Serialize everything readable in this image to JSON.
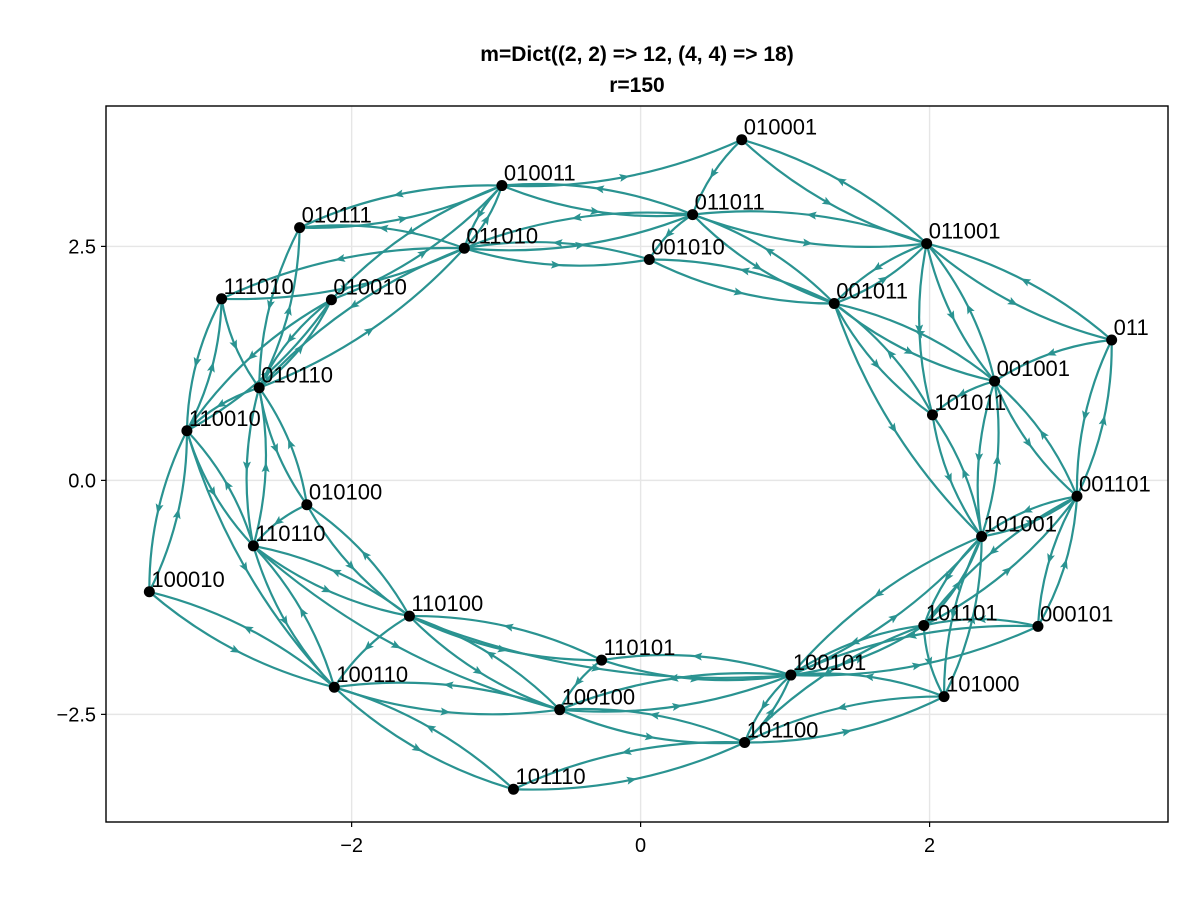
{
  "title": {
    "line1": "m=Dict((2, 2) => 12, (4, 4) => 18)",
    "line2": "r=150"
  },
  "axes": {
    "x_ticks": [
      {
        "value": -2,
        "label": "−2"
      },
      {
        "value": 0,
        "label": "0"
      },
      {
        "value": 2,
        "label": "2"
      }
    ],
    "y_ticks": [
      {
        "value": 2.5,
        "label": "2.5"
      },
      {
        "value": 0,
        "label": "0.0"
      },
      {
        "value": -2.5,
        "label": "−2.5"
      }
    ],
    "xlim": [
      -3.7,
      3.65
    ],
    "ylim": [
      -3.65,
      4.0
    ],
    "grid": true
  },
  "colors": {
    "edge": "#2a9391",
    "node": "#000000"
  },
  "nodes": [
    {
      "id": "010001",
      "x": 0.7,
      "y": 3.64
    },
    {
      "id": "010011",
      "x": -0.96,
      "y": 3.15
    },
    {
      "id": "011011",
      "x": 0.36,
      "y": 2.84
    },
    {
      "id": "010111",
      "x": -2.36,
      "y": 2.7
    },
    {
      "id": "011001",
      "x": 1.98,
      "y": 2.53
    },
    {
      "id": "011010",
      "x": -1.22,
      "y": 2.48
    },
    {
      "id": "001010",
      "x": 0.06,
      "y": 2.36
    },
    {
      "id": "111010",
      "x": -2.9,
      "y": 1.94
    },
    {
      "id": "010010",
      "x": -2.14,
      "y": 1.93
    },
    {
      "id": "001011",
      "x": 1.34,
      "y": 1.89
    },
    {
      "id": "011",
      "x": 3.26,
      "y": 1.5
    },
    {
      "id": "001001",
      "x": 2.45,
      "y": 1.06
    },
    {
      "id": "010110",
      "x": -2.64,
      "y": 0.99
    },
    {
      "id": "101011",
      "x": 2.02,
      "y": 0.7
    },
    {
      "id": "110010",
      "x": -3.14,
      "y": 0.53
    },
    {
      "id": "001101",
      "x": 3.02,
      "y": -0.17
    },
    {
      "id": "010100",
      "x": -2.31,
      "y": -0.26
    },
    {
      "id": "101001",
      "x": 2.36,
      "y": -0.6
    },
    {
      "id": "110110",
      "x": -2.68,
      "y": -0.7
    },
    {
      "id": "100010",
      "x": -3.4,
      "y": -1.19
    },
    {
      "id": "110100",
      "x": -1.6,
      "y": -1.45
    },
    {
      "id": "101101",
      "x": 1.96,
      "y": -1.55
    },
    {
      "id": "000101",
      "x": 2.75,
      "y": -1.56
    },
    {
      "id": "110101",
      "x": -0.27,
      "y": -1.92
    },
    {
      "id": "100101",
      "x": 1.04,
      "y": -2.08
    },
    {
      "id": "100110",
      "x": -2.12,
      "y": -2.21
    },
    {
      "id": "101000",
      "x": 2.1,
      "y": -2.31
    },
    {
      "id": "100100",
      "x": -0.56,
      "y": -2.45
    },
    {
      "id": "101100",
      "x": 0.72,
      "y": -2.8
    },
    {
      "id": "101110",
      "x": -0.88,
      "y": -3.3
    }
  ],
  "edges": [
    [
      "010011",
      "010001"
    ],
    [
      "010001",
      "011011"
    ],
    [
      "010001",
      "011001"
    ],
    [
      "011001",
      "010001"
    ],
    [
      "011011",
      "010011"
    ],
    [
      "010011",
      "011011"
    ],
    [
      "010011",
      "010111"
    ],
    [
      "010111",
      "010011"
    ],
    [
      "010011",
      "011010"
    ],
    [
      "011010",
      "010011"
    ],
    [
      "010011",
      "010010"
    ],
    [
      "010010",
      "010011"
    ],
    [
      "011011",
      "011001"
    ],
    [
      "011001",
      "011011"
    ],
    [
      "011011",
      "011010"
    ],
    [
      "011010",
      "011011"
    ],
    [
      "011011",
      "001011"
    ],
    [
      "001011",
      "011011"
    ],
    [
      "011011",
      "001010"
    ],
    [
      "011001",
      "001011"
    ],
    [
      "001011",
      "011001"
    ],
    [
      "011001",
      "011"
    ],
    [
      "011",
      "011001"
    ],
    [
      "011001",
      "001001"
    ],
    [
      "001001",
      "011001"
    ],
    [
      "011001",
      "101011"
    ],
    [
      "011010",
      "001010"
    ],
    [
      "001010",
      "011010"
    ],
    [
      "011010",
      "111010"
    ],
    [
      "111010",
      "011010"
    ],
    [
      "011010",
      "010110"
    ],
    [
      "010110",
      "011010"
    ],
    [
      "011010",
      "010111"
    ],
    [
      "001010",
      "001011"
    ],
    [
      "001011",
      "001010"
    ],
    [
      "010111",
      "010110"
    ],
    [
      "010110",
      "010111"
    ],
    [
      "111010",
      "110010"
    ],
    [
      "110010",
      "111010"
    ],
    [
      "111010",
      "010110"
    ],
    [
      "010010",
      "010110"
    ],
    [
      "010110",
      "010010"
    ],
    [
      "010010",
      "110010"
    ],
    [
      "110010",
      "010010"
    ],
    [
      "001011",
      "001001"
    ],
    [
      "001001",
      "001011"
    ],
    [
      "001011",
      "101011"
    ],
    [
      "101011",
      "001011"
    ],
    [
      "001011",
      "101001"
    ],
    [
      "011",
      "001101"
    ],
    [
      "001101",
      "011"
    ],
    [
      "011",
      "001001"
    ],
    [
      "001001",
      "001101"
    ],
    [
      "001101",
      "001001"
    ],
    [
      "001001",
      "101001"
    ],
    [
      "101001",
      "001001"
    ],
    [
      "001001",
      "101011"
    ],
    [
      "101011",
      "101001"
    ],
    [
      "101001",
      "101011"
    ],
    [
      "010110",
      "010100"
    ],
    [
      "010100",
      "010110"
    ],
    [
      "010110",
      "110110"
    ],
    [
      "110110",
      "010110"
    ],
    [
      "010110",
      "110010"
    ],
    [
      "110010",
      "110110"
    ],
    [
      "110110",
      "110010"
    ],
    [
      "110010",
      "100010"
    ],
    [
      "100010",
      "110010"
    ],
    [
      "110010",
      "100110"
    ],
    [
      "001101",
      "101001"
    ],
    [
      "101001",
      "001101"
    ],
    [
      "001101",
      "000101"
    ],
    [
      "000101",
      "001101"
    ],
    [
      "001101",
      "101101"
    ],
    [
      "101101",
      "001101"
    ],
    [
      "010100",
      "110100"
    ],
    [
      "110100",
      "010100"
    ],
    [
      "010100",
      "110110"
    ],
    [
      "101001",
      "101101"
    ],
    [
      "101101",
      "101001"
    ],
    [
      "101001",
      "100101"
    ],
    [
      "100101",
      "101001"
    ],
    [
      "101001",
      "101000"
    ],
    [
      "101000",
      "101001"
    ],
    [
      "110110",
      "110100"
    ],
    [
      "110100",
      "110110"
    ],
    [
      "110110",
      "100110"
    ],
    [
      "100110",
      "110110"
    ],
    [
      "110110",
      "100100"
    ],
    [
      "100010",
      "100110"
    ],
    [
      "100110",
      "100010"
    ],
    [
      "110100",
      "110101"
    ],
    [
      "110101",
      "110100"
    ],
    [
      "110100",
      "100100"
    ],
    [
      "100100",
      "110100"
    ],
    [
      "110100",
      "100101"
    ],
    [
      "110100",
      "100110"
    ],
    [
      "101101",
      "100101"
    ],
    [
      "100101",
      "101101"
    ],
    [
      "101101",
      "101000"
    ],
    [
      "101101",
      "101100"
    ],
    [
      "000101",
      "100101"
    ],
    [
      "100101",
      "000101"
    ],
    [
      "000101",
      "101101"
    ],
    [
      "110101",
      "100101"
    ],
    [
      "100101",
      "110101"
    ],
    [
      "110101",
      "100100"
    ],
    [
      "100101",
      "100100"
    ],
    [
      "100100",
      "100101"
    ],
    [
      "100101",
      "101100"
    ],
    [
      "101100",
      "100101"
    ],
    [
      "100110",
      "100100"
    ],
    [
      "100100",
      "100110"
    ],
    [
      "100110",
      "101110"
    ],
    [
      "101110",
      "100110"
    ],
    [
      "101000",
      "101100"
    ],
    [
      "101100",
      "101000"
    ],
    [
      "101000",
      "100101"
    ],
    [
      "100100",
      "101100"
    ],
    [
      "101100",
      "100100"
    ],
    [
      "101100",
      "101110"
    ],
    [
      "101110",
      "101100"
    ]
  ]
}
